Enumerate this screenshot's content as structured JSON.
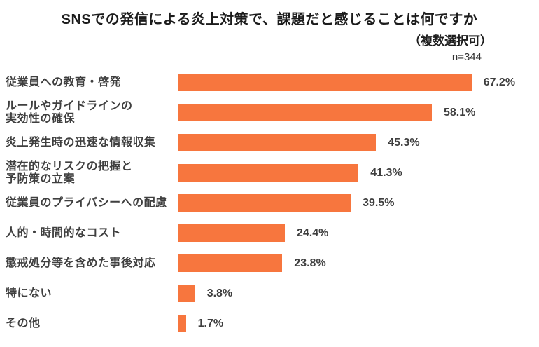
{
  "header": {
    "title": "SNSでの発信による炎上対策で、課題だと感じることは何ですか",
    "subtitle": "（複数選択可）",
    "sample_size": "n=344"
  },
  "colors": {
    "bar": "#F7763E",
    "title_text": "#1C1C1C",
    "label_text": "#3F3F3F"
  },
  "chart_data": {
    "type": "bar",
    "orientation": "horizontal",
    "title": "SNSでの発信による炎上対策で、課題だと感じることは何ですか",
    "subtitle": "（複数選択可）",
    "sample_size_label": "n=344",
    "n": 344,
    "unit": "%",
    "xlim": [
      0,
      70
    ],
    "grid": false,
    "legend": false,
    "value_labels": "outside-end",
    "categories": [
      "従業員への教育・啓発",
      "ルールやガイドラインの実効性の確保",
      "炎上発生時の迅速な情報収集",
      "潜在的なリスクの把握と予防策の立案",
      "従業員のプライバシーへの配慮",
      "人的・時間的なコスト",
      "懲戒処分等を含めた事後対応",
      "特にない",
      "その他"
    ],
    "values": [
      67.2,
      58.1,
      45.3,
      41.3,
      39.5,
      24.4,
      23.8,
      3.8,
      1.7
    ],
    "items": [
      {
        "label": "従業員への教育・啓発",
        "value": 67.2,
        "value_label": "67.2%"
      },
      {
        "label": "ルールやガイドラインの\n実効性の確保",
        "value": 58.1,
        "value_label": "58.1%"
      },
      {
        "label": "炎上発生時の迅速な情報収集",
        "value": 45.3,
        "value_label": "45.3%"
      },
      {
        "label": "潜在的なリスクの把握と\n予防策の立案",
        "value": 41.3,
        "value_label": "41.3%"
      },
      {
        "label": "従業員のプライバシーへの配慮",
        "value": 39.5,
        "value_label": "39.5%"
      },
      {
        "label": "人的・時間的なコスト",
        "value": 24.4,
        "value_label": "24.4%"
      },
      {
        "label": "懲戒処分等を含めた事後対応",
        "value": 23.8,
        "value_label": "23.8%"
      },
      {
        "label": "特にない",
        "value": 3.8,
        "value_label": "3.8%"
      },
      {
        "label": "その他",
        "value": 1.7,
        "value_label": "1.7%"
      }
    ]
  }
}
